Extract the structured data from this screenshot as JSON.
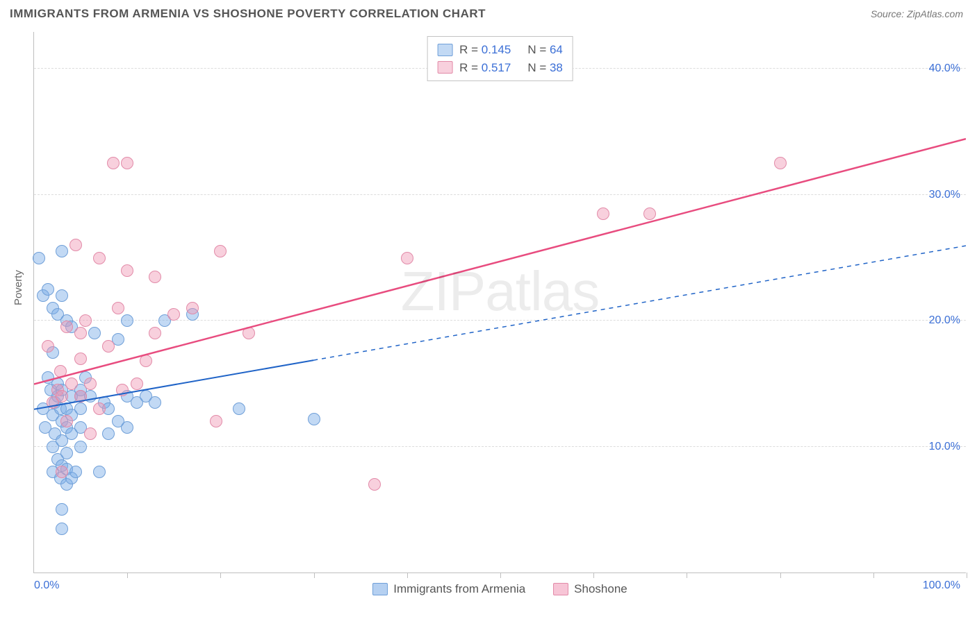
{
  "header": {
    "title": "IMMIGRANTS FROM ARMENIA VS SHOSHONE POVERTY CORRELATION CHART",
    "source_prefix": "Source: ",
    "source": "ZipAtlas.com"
  },
  "chart": {
    "type": "scatter",
    "ylabel": "Poverty",
    "xlim": [
      0,
      100
    ],
    "ylim": [
      0,
      43
    ],
    "xtick_labels": {
      "left": "0.0%",
      "right": "100.0%"
    },
    "xtick_positions": [
      0,
      10,
      20,
      30,
      40,
      50,
      60,
      70,
      80,
      90,
      100
    ],
    "ytick_values": [
      10,
      20,
      30,
      40
    ],
    "ytick_labels": [
      "10.0%",
      "20.0%",
      "30.0%",
      "40.0%"
    ],
    "grid_color": "#dcdcdc",
    "axis_color": "#bfbfbf",
    "background_color": "#ffffff",
    "tick_label_color": "#3b6fd6",
    "title_fontsize": 17,
    "label_fontsize": 15,
    "tick_fontsize": 16,
    "marker_radius": 9,
    "watermark": "ZIPatlas",
    "series": [
      {
        "key": "armenia",
        "label": "Immigrants from Armenia",
        "R": "0.145",
        "N": "64",
        "fill": "rgba(120,170,230,0.45)",
        "stroke": "#6f9fd8",
        "line_color": "#1f63c7",
        "line_width": 2,
        "trend": {
          "x1": 0,
          "y1": 13,
          "x2": 100,
          "y2": 26,
          "solid_until_x": 30
        },
        "points": [
          [
            0.5,
            25
          ],
          [
            1,
            13
          ],
          [
            1,
            22
          ],
          [
            1.2,
            11.5
          ],
          [
            1.5,
            15.5
          ],
          [
            1.5,
            22.5
          ],
          [
            1.8,
            14.5
          ],
          [
            2,
            8
          ],
          [
            2,
            10
          ],
          [
            2,
            12.5
          ],
          [
            2,
            17.5
          ],
          [
            2,
            21
          ],
          [
            2.2,
            11
          ],
          [
            2.2,
            13.5
          ],
          [
            2.5,
            9
          ],
          [
            2.5,
            14
          ],
          [
            2.5,
            15
          ],
          [
            2.5,
            20.5
          ],
          [
            2.8,
            7.5
          ],
          [
            2.8,
            13
          ],
          [
            3,
            3.5
          ],
          [
            3,
            5
          ],
          [
            3,
            8.5
          ],
          [
            3,
            10.5
          ],
          [
            3,
            12
          ],
          [
            3,
            14.5
          ],
          [
            3,
            22
          ],
          [
            3,
            25.5
          ],
          [
            3.5,
            7
          ],
          [
            3.5,
            8.2
          ],
          [
            3.5,
            9.5
          ],
          [
            3.5,
            11.5
          ],
          [
            3.5,
            13
          ],
          [
            3.5,
            20
          ],
          [
            4,
            7.5
          ],
          [
            4,
            11
          ],
          [
            4,
            12.5
          ],
          [
            4,
            14
          ],
          [
            4,
            19.5
          ],
          [
            4.5,
            8
          ],
          [
            5,
            10
          ],
          [
            5,
            11.5
          ],
          [
            5,
            13
          ],
          [
            5,
            14
          ],
          [
            5,
            14.5
          ],
          [
            5.5,
            15.5
          ],
          [
            6,
            14
          ],
          [
            6.5,
            19
          ],
          [
            7,
            8
          ],
          [
            7.5,
            13.5
          ],
          [
            8,
            11
          ],
          [
            8,
            13
          ],
          [
            9,
            12
          ],
          [
            9,
            18.5
          ],
          [
            10,
            11.5
          ],
          [
            10,
            14
          ],
          [
            10,
            20
          ],
          [
            11,
            13.5
          ],
          [
            12,
            14
          ],
          [
            13,
            13.5
          ],
          [
            14,
            20
          ],
          [
            17,
            20.5
          ],
          [
            22,
            13
          ],
          [
            30,
            12.2
          ]
        ]
      },
      {
        "key": "shoshone",
        "label": "Shoshone",
        "R": "0.517",
        "N": "38",
        "fill": "rgba(240,150,180,0.45)",
        "stroke": "#e28aa8",
        "line_color": "#e84c7f",
        "line_width": 2.5,
        "trend": {
          "x1": 0,
          "y1": 15,
          "x2": 100,
          "y2": 34.5,
          "solid_until_x": 100
        },
        "points": [
          [
            1.5,
            18
          ],
          [
            2,
            13.5
          ],
          [
            2.5,
            14.5
          ],
          [
            2.8,
            16
          ],
          [
            3,
            8
          ],
          [
            3,
            14
          ],
          [
            3.5,
            12
          ],
          [
            3.5,
            19.5
          ],
          [
            4,
            15
          ],
          [
            4.5,
            26
          ],
          [
            5,
            14
          ],
          [
            5,
            17
          ],
          [
            5,
            19
          ],
          [
            5.5,
            20
          ],
          [
            6,
            11
          ],
          [
            6,
            15
          ],
          [
            7,
            13
          ],
          [
            7,
            25
          ],
          [
            8,
            18
          ],
          [
            8.5,
            32.5
          ],
          [
            9,
            21
          ],
          [
            9.5,
            14.5
          ],
          [
            10,
            24
          ],
          [
            10,
            32.5
          ],
          [
            11,
            15
          ],
          [
            12,
            16.8
          ],
          [
            13,
            19
          ],
          [
            13,
            23.5
          ],
          [
            15,
            20.5
          ],
          [
            17,
            21
          ],
          [
            19.5,
            12
          ],
          [
            20,
            25.5
          ],
          [
            23,
            19
          ],
          [
            36.5,
            7
          ],
          [
            40,
            25
          ],
          [
            61,
            28.5
          ],
          [
            66,
            28.5
          ],
          [
            80,
            32.5
          ]
        ]
      }
    ],
    "bottom_legend": [
      {
        "label": "Immigrants from Armenia",
        "fill": "rgba(120,170,230,0.55)",
        "stroke": "#6f9fd8"
      },
      {
        "label": "Shoshone",
        "fill": "rgba(240,150,180,0.55)",
        "stroke": "#e28aa8"
      }
    ]
  }
}
